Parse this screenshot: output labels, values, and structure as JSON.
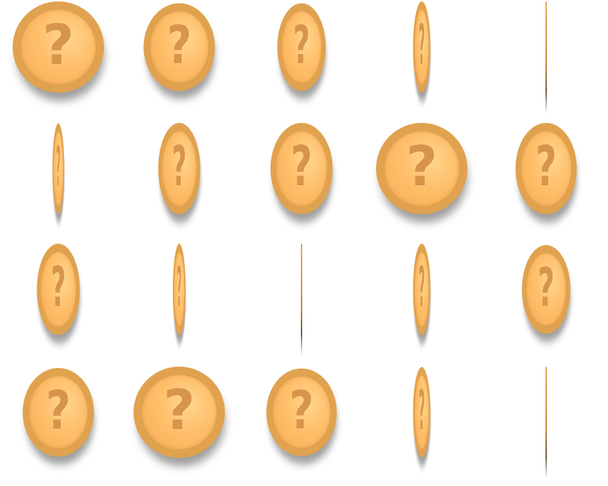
{
  "sprite_sheet": {
    "rows": 4,
    "columns": 5,
    "glyph": "?",
    "colors": {
      "rim": "#e0a24e",
      "face": "#ffbf6a",
      "face_highlight": "#ffd58e",
      "glyph": "#d6954a",
      "shadow": "#3a3a3a",
      "background": "#ffffff"
    },
    "frames": [
      {
        "index": 0,
        "scale_x": 1.0,
        "scale_y": 1.0,
        "view": "face"
      },
      {
        "index": 1,
        "scale_x": 0.78,
        "scale_y": 0.96,
        "view": "face"
      },
      {
        "index": 2,
        "scale_x": 0.53,
        "scale_y": 0.96,
        "view": "face"
      },
      {
        "index": 3,
        "scale_x": 0.19,
        "scale_y": 1.0,
        "view": "face"
      },
      {
        "index": 4,
        "scale_x": 0.02,
        "scale_y": 1.0,
        "view": "edge"
      },
      {
        "index": 5,
        "scale_x": 0.13,
        "scale_y": 0.99,
        "view": "face"
      },
      {
        "index": 6,
        "scale_x": 0.46,
        "scale_y": 1.0,
        "view": "face"
      },
      {
        "index": 7,
        "scale_x": 0.68,
        "scale_y": 1.0,
        "view": "face"
      },
      {
        "index": 8,
        "scale_x": 1.0,
        "scale_y": 1.0,
        "view": "face"
      },
      {
        "index": 9,
        "scale_x": 0.67,
        "scale_y": 1.0,
        "view": "face"
      },
      {
        "index": 10,
        "scale_x": 0.47,
        "scale_y": 1.0,
        "view": "face"
      },
      {
        "index": 11,
        "scale_x": 0.14,
        "scale_y": 1.0,
        "view": "face"
      },
      {
        "index": 12,
        "scale_x": 0.02,
        "scale_y": 1.0,
        "view": "edge"
      },
      {
        "index": 13,
        "scale_x": 0.19,
        "scale_y": 1.0,
        "view": "face"
      },
      {
        "index": 14,
        "scale_x": 0.53,
        "scale_y": 0.97,
        "view": "face"
      },
      {
        "index": 15,
        "scale_x": 0.78,
        "scale_y": 0.97,
        "view": "face"
      },
      {
        "index": 16,
        "scale_x": 1.0,
        "scale_y": 1.0,
        "view": "face"
      },
      {
        "index": 17,
        "scale_x": 0.77,
        "scale_y": 0.96,
        "view": "face"
      },
      {
        "index": 18,
        "scale_x": 0.19,
        "scale_y": 0.99,
        "view": "face"
      },
      {
        "index": 19,
        "scale_x": 0.02,
        "scale_y": 1.0,
        "view": "edge"
      }
    ]
  }
}
